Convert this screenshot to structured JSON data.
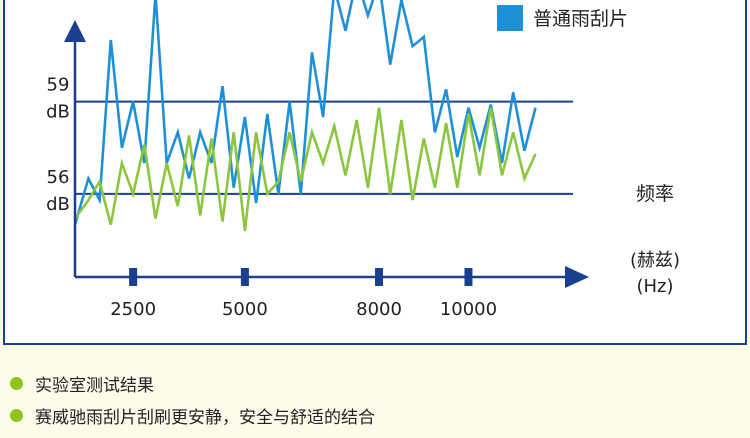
{
  "chart_data": {
    "type": "line",
    "x_ticks": [
      "2500",
      "5000",
      "8000",
      "10000"
    ],
    "x_range": [
      1200,
      11600
    ],
    "y_range": [
      53.3,
      62.3
    ],
    "y_refs": [
      {
        "value": 59,
        "label_value": "59",
        "label_unit": "dB"
      },
      {
        "value": 56,
        "label_value": "56",
        "label_unit": "dB"
      }
    ],
    "xlabel_line1": "频率",
    "xlabel_line2": "(赫兹)",
    "xlabel_line3": "(Hz)",
    "legend": {
      "label": "普通雨刮片"
    },
    "series": [
      {
        "name": "普通雨刮片",
        "color": "#1e90d8",
        "x": [
          1200,
          1500,
          1750,
          2000,
          2250,
          2500,
          2750,
          3000,
          3250,
          3500,
          3750,
          4000,
          4250,
          4500,
          4750,
          5000,
          5250,
          5500,
          5750,
          6000,
          6250,
          6500,
          6750,
          7000,
          7250,
          7500,
          7750,
          8000,
          8250,
          8500,
          8750,
          9000,
          9250,
          9500,
          9750,
          10000,
          10250,
          10500,
          10750,
          11000,
          11250,
          11500
        ],
        "y": [
          55.0,
          56.5,
          55.8,
          61.0,
          57.5,
          59.0,
          57.0,
          62.5,
          57.0,
          58.0,
          56.5,
          58.0,
          57.0,
          59.5,
          56.2,
          58.5,
          55.7,
          58.6,
          56.0,
          59.0,
          56.0,
          60.6,
          58.5,
          62.7,
          61.3,
          63.0,
          61.8,
          62.9,
          60.2,
          62.3,
          60.8,
          61.1,
          58.0,
          59.4,
          57.2,
          58.8,
          57.5,
          58.9,
          57.0,
          59.3,
          57.4,
          58.8
        ]
      },
      {
        "name": "",
        "color": "#8cc63f",
        "x": [
          1200,
          1500,
          1750,
          2000,
          2250,
          2500,
          2750,
          3000,
          3250,
          3500,
          3750,
          4000,
          4250,
          4500,
          4750,
          5000,
          5250,
          5500,
          5750,
          6000,
          6250,
          6500,
          6750,
          7000,
          7250,
          7500,
          7750,
          8000,
          8250,
          8500,
          8750,
          9000,
          9250,
          9500,
          9750,
          10000,
          10250,
          10500,
          10750,
          11000,
          11250,
          11500
        ],
        "y": [
          55.2,
          55.8,
          56.4,
          55.0,
          57.0,
          56.0,
          57.6,
          55.2,
          57.0,
          55.6,
          57.9,
          55.3,
          57.8,
          55.1,
          58.0,
          54.8,
          58.0,
          56.0,
          56.4,
          58.0,
          56.4,
          58.0,
          57.0,
          58.2,
          56.6,
          58.4,
          56.2,
          58.8,
          56.0,
          58.4,
          55.8,
          57.8,
          56.2,
          58.3,
          56.2,
          58.6,
          56.6,
          58.8,
          56.6,
          58.0,
          56.5,
          57.3
        ]
      }
    ],
    "grid": false,
    "legend_position": "top-right"
  },
  "notes": [
    "实验室测试结果",
    "赛威驰雨刮片刮刷更安静，安全与舒适的结合"
  ]
}
